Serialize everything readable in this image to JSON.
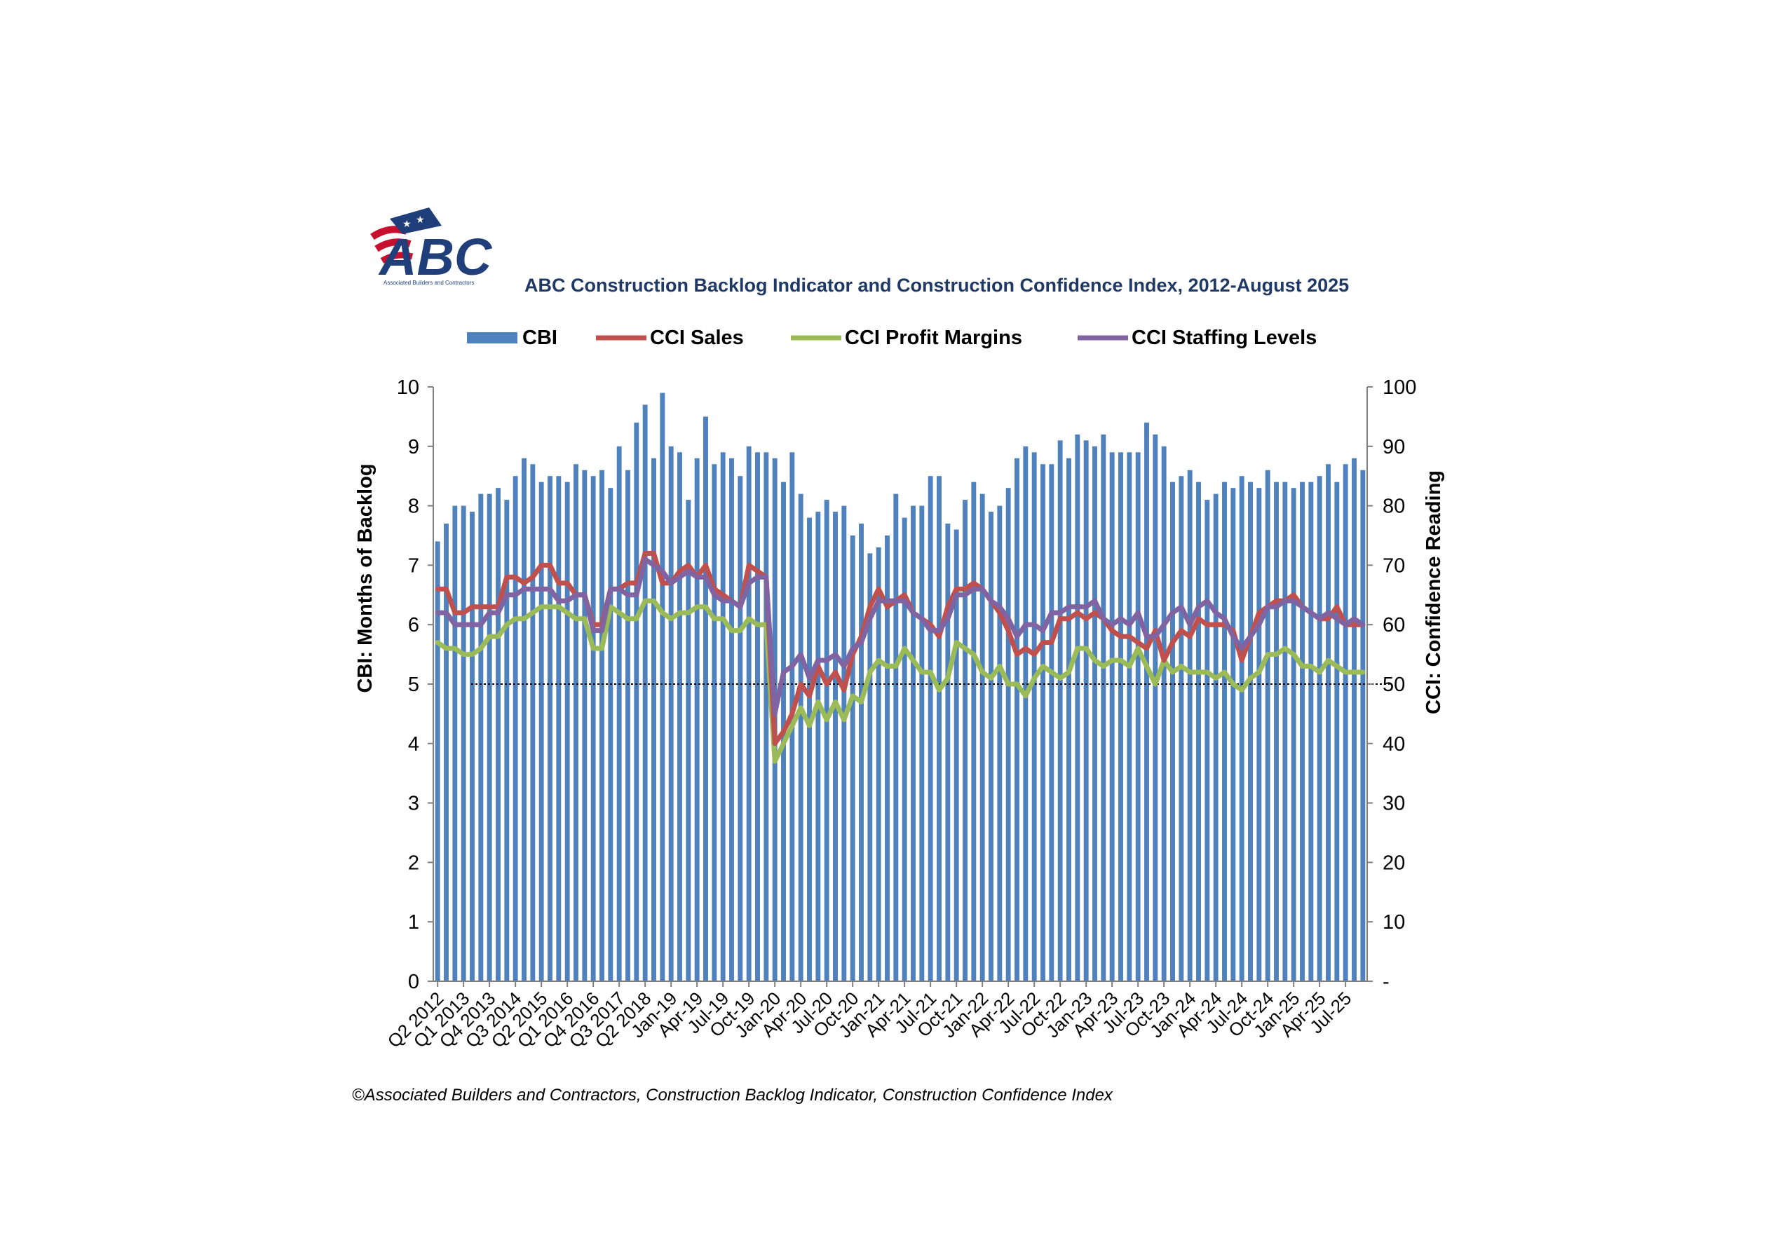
{
  "logo": {
    "letters": "ABC",
    "caption": "Associated Builders and Contractors"
  },
  "title": "ABC Construction Backlog Indicator and Construction Confidence Index, 2012-August 2025",
  "source": "©Associated Builders and Contractors, Construction Backlog Indicator, Construction Confidence Index",
  "colors": {
    "cbi": "#4F81BD",
    "sales": "#C0504D",
    "profit": "#9BBB59",
    "staffing": "#8064A2",
    "title": "#1F3864",
    "logo_navy": "#1F3E7A",
    "logo_red": "#C8102E"
  },
  "chart_data": {
    "type": "bar",
    "ylabel": "CBI: Months of Backlog",
    "y2label": "CCI: Confidence Reading",
    "ylim": [
      0,
      10
    ],
    "y2lim": [
      0,
      100
    ],
    "yticks": [
      "0",
      "1",
      "2",
      "3",
      "4",
      "5",
      "6",
      "7",
      "8",
      "9",
      "10"
    ],
    "y2ticks": [
      "-",
      "10",
      "20",
      "30",
      "40",
      "50",
      "60",
      "70",
      "80",
      "90",
      "100"
    ],
    "reference_line": 50,
    "legend_position": "top",
    "grid": false,
    "xtick_labels": [
      "Q2 2012",
      "Q1 2013",
      "Q4 2013",
      "Q3 2014",
      "Q2 2015",
      "Q1 2016",
      "Q4 2016",
      "Q3 2017",
      "Q2 2018",
      "Jan-19",
      "Apr-19",
      "Jul-19",
      "Oct-19",
      "Jan-20",
      "Apr-20",
      "Jul-20",
      "Oct-20",
      "Jan-21",
      "Apr-21",
      "Jul-21",
      "Oct-21",
      "Jan-22",
      "Apr-22",
      "Jul-22",
      "Oct-22",
      "Jan-23",
      "Apr-23",
      "Jul-23",
      "Oct-23",
      "Jan-24",
      "Apr-24",
      "Jul-24",
      "Oct-24",
      "Jan-25",
      "Apr-25",
      "Jul-25"
    ],
    "xtick_positions": [
      0,
      3,
      6,
      9,
      12,
      15,
      18,
      21,
      24,
      27,
      30,
      33,
      36,
      39,
      42,
      45,
      48,
      51,
      54,
      57,
      60,
      63,
      66,
      69,
      72,
      75,
      78,
      81,
      84,
      87,
      90,
      93,
      96,
      99,
      102,
      105
    ],
    "series": [
      {
        "name": "CBI",
        "type": "bar",
        "axis": "left",
        "values": [
          7.4,
          7.7,
          8.0,
          8.0,
          7.9,
          8.2,
          8.2,
          8.3,
          8.1,
          8.5,
          8.8,
          8.7,
          8.4,
          8.5,
          8.5,
          8.4,
          8.7,
          8.6,
          8.5,
          8.6,
          8.3,
          9.0,
          8.6,
          9.4,
          9.7,
          8.8,
          9.9,
          9.0,
          8.9,
          8.1,
          8.8,
          9.5,
          8.7,
          8.9,
          8.8,
          8.5,
          9.0,
          8.9,
          8.9,
          8.8,
          8.4,
          8.9,
          8.2,
          7.8,
          7.9,
          8.1,
          7.9,
          8.0,
          7.5,
          7.7,
          7.2,
          7.3,
          7.5,
          8.2,
          7.8,
          8.0,
          8.0,
          8.5,
          8.5,
          7.7,
          7.6,
          8.1,
          8.4,
          8.2,
          7.9,
          8.0,
          8.3,
          8.8,
          9.0,
          8.9,
          8.7,
          8.7,
          9.1,
          8.8,
          9.2,
          9.1,
          9.0,
          9.2,
          8.9,
          8.9,
          8.9,
          8.9,
          9.4,
          9.2,
          9.0,
          8.4,
          8.5,
          8.6,
          8.4,
          8.1,
          8.2,
          8.4,
          8.3,
          8.5,
          8.4,
          8.3,
          8.6,
          8.4,
          8.4,
          8.3,
          8.4,
          8.4,
          8.5,
          8.7,
          8.4,
          8.7,
          8.8,
          8.6
        ]
      },
      {
        "name": "CCI Sales",
        "type": "line",
        "axis": "right",
        "values": [
          66,
          66,
          62,
          62,
          63,
          63,
          63,
          63,
          68,
          68,
          67,
          68,
          70,
          70,
          67,
          67,
          65,
          65,
          60,
          60,
          66,
          66,
          67,
          67,
          72,
          72,
          67,
          67,
          69,
          70,
          68,
          70,
          66,
          65,
          64,
          63,
          70,
          69,
          68,
          40,
          42,
          45,
          50,
          48,
          53,
          50,
          52,
          49,
          55,
          58,
          63,
          66,
          63,
          64,
          65,
          62,
          61,
          60,
          58,
          63,
          66,
          66,
          67,
          66,
          64,
          62,
          59,
          55,
          56,
          55,
          57,
          57,
          61,
          61,
          62,
          61,
          62,
          61,
          59,
          58,
          58,
          57,
          56,
          59,
          54,
          57,
          59,
          58,
          61,
          60,
          60,
          60,
          59,
          54,
          58,
          62,
          63,
          64,
          64,
          65,
          63,
          62,
          61,
          61,
          63,
          60,
          60,
          60
        ]
      },
      {
        "name": "CCI Profit Margins",
        "type": "line",
        "axis": "right",
        "values": [
          57,
          56,
          56,
          55,
          55,
          56,
          58,
          58,
          60,
          61,
          61,
          62,
          63,
          63,
          63,
          62,
          61,
          61,
          56,
          56,
          63,
          62,
          61,
          61,
          64,
          64,
          62,
          61,
          62,
          62,
          63,
          63,
          61,
          61,
          59,
          59,
          61,
          60,
          60,
          37,
          40,
          43,
          46,
          43,
          47,
          44,
          47,
          44,
          48,
          47,
          52,
          54,
          53,
          53,
          56,
          54,
          52,
          52,
          49,
          51,
          57,
          56,
          55,
          52,
          51,
          53,
          50,
          50,
          48,
          51,
          53,
          52,
          51,
          52,
          56,
          56,
          54,
          53,
          54,
          54,
          53,
          56,
          53,
          50,
          54,
          52,
          53,
          52,
          52,
          52,
          51,
          52,
          50,
          49,
          51,
          52,
          55,
          55,
          56,
          55,
          53,
          53,
          52,
          54,
          53,
          52,
          52,
          52
        ]
      },
      {
        "name": "CCI Staffing Levels",
        "type": "line",
        "axis": "right",
        "values": [
          62,
          62,
          60,
          60,
          60,
          60,
          62,
          62,
          65,
          65,
          66,
          66,
          66,
          66,
          64,
          64,
          65,
          65,
          59,
          59,
          66,
          66,
          65,
          65,
          71,
          70,
          69,
          67,
          68,
          69,
          68,
          68,
          65,
          64,
          64,
          63,
          67,
          68,
          68,
          45,
          52,
          53,
          55,
          51,
          54,
          54,
          55,
          53,
          56,
          57,
          61,
          64,
          64,
          64,
          64,
          62,
          61,
          59,
          59,
          61,
          65,
          65,
          66,
          66,
          64,
          63,
          61,
          58,
          60,
          60,
          59,
          62,
          62,
          63,
          63,
          63,
          64,
          61,
          60,
          61,
          60,
          62,
          58,
          58,
          60,
          62,
          63,
          60,
          63,
          64,
          62,
          61,
          58,
          56,
          58,
          60,
          63,
          63,
          64,
          64,
          63,
          62,
          61,
          62,
          61,
          60,
          61,
          60
        ]
      }
    ]
  }
}
